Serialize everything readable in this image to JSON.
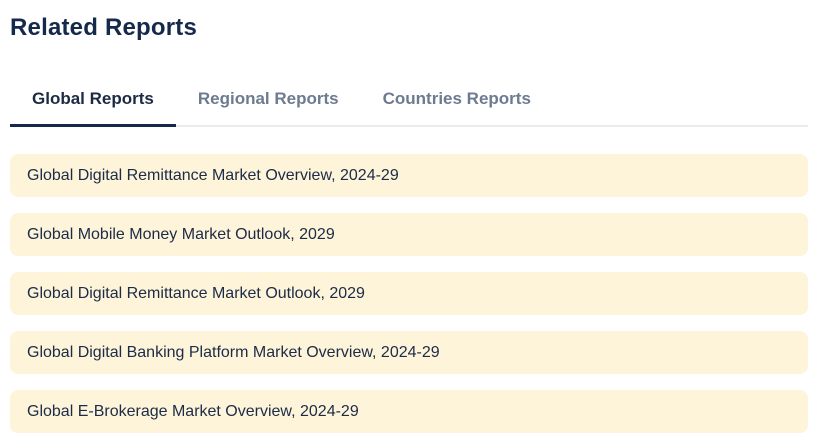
{
  "header": {
    "title": "Related Reports"
  },
  "tabs": {
    "active": "Global Reports",
    "items": [
      {
        "label": "Global Reports",
        "active": true
      },
      {
        "label": "Regional Reports",
        "active": false
      },
      {
        "label": "Countries Reports",
        "active": false
      }
    ]
  },
  "reports": {
    "items": [
      {
        "title": "Global Digital Remittance Market Overview, 2024-29"
      },
      {
        "title": "Global Mobile Money Market Outlook, 2029"
      },
      {
        "title": "Global Digital Remittance Market Outlook, 2029"
      },
      {
        "title": "Global Digital Banking Platform Market Overview, 2024-29"
      },
      {
        "title": "Global E-Brokerage Market Overview, 2024-29"
      }
    ]
  },
  "colors": {
    "accent_navy": "#15294a",
    "active_tab_text": "#1c2b42",
    "inactive_tab_text": "#6d7b90",
    "tab_border": "#e9ebee",
    "row_background": "#fdf4d9",
    "row_text": "#1c2b47",
    "page_background": "#ffffff"
  }
}
